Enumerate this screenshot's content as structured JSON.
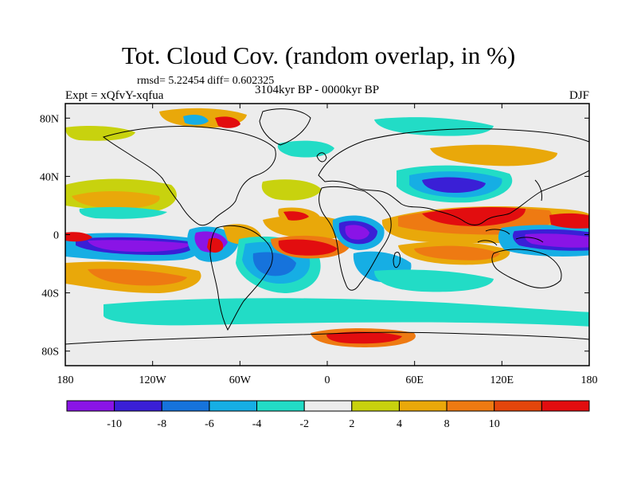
{
  "header": {
    "title": "Tot. Cloud Cov. (random overlap, in %)",
    "stats": "rmsd= 5.22454 diff= 0.602325",
    "experiment": "Expt = xQfvY-xqfua",
    "period": "3104kyr BP - 0000kyr BP",
    "season": "DJF"
  },
  "axes": {
    "lon_ticks": [
      "180",
      "120W",
      "60W",
      "0",
      "60E",
      "120E",
      "180"
    ],
    "lat_ticks": [
      "80N",
      "40N",
      "0",
      "40S",
      "80S"
    ],
    "lon_range": [
      -180,
      180
    ],
    "lat_range": [
      -90,
      90
    ]
  },
  "colorbar": {
    "colors": [
      "#8a14e6",
      "#3a1fd6",
      "#1673dc",
      "#16aee4",
      "#22dcc6",
      "#ececec",
      "#c8d20e",
      "#e9a80a",
      "#ee7a12",
      "#e3460c",
      "#e20d0f"
    ],
    "labels": [
      "-10",
      "-8",
      "-6",
      "-4",
      "-2",
      "2",
      "4",
      "8",
      "10"
    ]
  },
  "colors": {
    "coast": "#000000",
    "background": "#ececec"
  }
}
